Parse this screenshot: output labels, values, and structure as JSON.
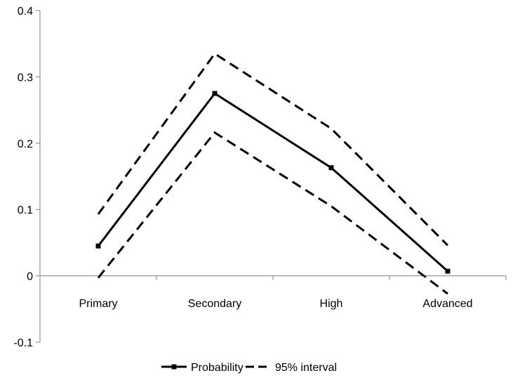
{
  "chart_data": {
    "type": "line",
    "title": "",
    "xlabel": "",
    "ylabel": "",
    "categories": [
      "Primary",
      "Secondary",
      "High",
      "Advanced"
    ],
    "ylim": [
      -0.1,
      0.4
    ],
    "yticks": [
      {
        "value": -0.1,
        "label": "-0.1"
      },
      {
        "value": 0,
        "label": "0"
      },
      {
        "value": 0.1,
        "label": "0.1"
      },
      {
        "value": 0.2,
        "label": "0.2"
      },
      {
        "value": 0.3,
        "label": "0.3"
      },
      {
        "value": 0.4,
        "label": "0.4"
      }
    ],
    "grid": false,
    "legend_position": "bottom",
    "series": [
      {
        "name": "Probability",
        "values": [
          0.045,
          0.275,
          0.163,
          0.007
        ],
        "style": "solid",
        "markers": true,
        "color": "#000000"
      },
      {
        "name": "95% interval",
        "values": [
          0.093,
          0.335,
          0.222,
          0.046
        ],
        "style": "dashed",
        "markers": false,
        "color": "#000000"
      },
      {
        "values": [
          -0.003,
          0.216,
          0.105,
          -0.027
        ],
        "style": "dashed",
        "markers": false,
        "color": "#000000"
      }
    ]
  }
}
